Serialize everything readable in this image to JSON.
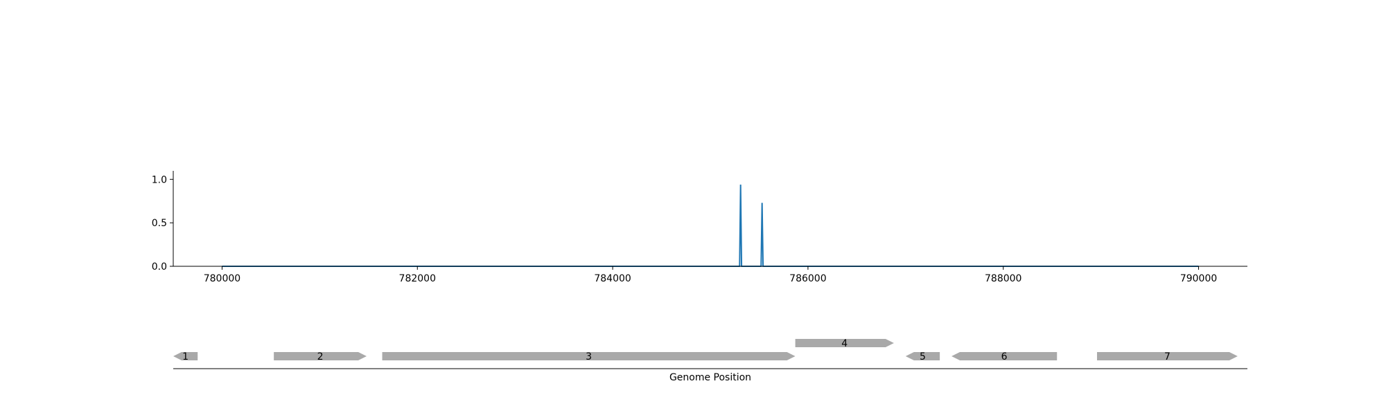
{
  "chart_data": [
    {
      "type": "line",
      "title": "",
      "xlabel": "",
      "ylabel": "",
      "xlim": [
        779500,
        790500
      ],
      "ylim": [
        0,
        1.05
      ],
      "xticks": [
        780000,
        782000,
        784000,
        786000,
        788000,
        790000
      ],
      "xtick_labels": [
        "780000",
        "782000",
        "784000",
        "786000",
        "788000",
        "790000"
      ],
      "yticks": [
        0,
        0.5,
        1
      ],
      "ytick_labels": [
        "0.0",
        "0.5",
        "1.0"
      ],
      "grid": false,
      "legend": "none",
      "series": [
        {
          "color": "#1f77b4",
          "x": [
            780000,
            785300,
            785310,
            785320,
            785520,
            785530,
            785540,
            790000
          ],
          "y": [
            0,
            0,
            0.94,
            0,
            0,
            0.73,
            0,
            0
          ]
        }
      ]
    },
    {
      "type": "gene-track",
      "xlabel": "Genome Position",
      "xlim": [
        779500,
        790500
      ],
      "feature_color": "#a9a9a9",
      "features": [
        {
          "label": "1",
          "start": 779500,
          "end": 779750,
          "strand": "-",
          "row": 0
        },
        {
          "label": "2",
          "start": 780530,
          "end": 781480,
          "strand": "+",
          "row": 0
        },
        {
          "label": "3",
          "start": 781640,
          "end": 785870,
          "strand": "+",
          "row": 0
        },
        {
          "label": "4",
          "start": 785870,
          "end": 786880,
          "strand": "+",
          "row": 1
        },
        {
          "label": "5",
          "start": 787000,
          "end": 787350,
          "strand": "-",
          "row": 0
        },
        {
          "label": "6",
          "start": 787470,
          "end": 788550,
          "strand": "-",
          "row": 0
        },
        {
          "label": "7",
          "start": 788960,
          "end": 790400,
          "strand": "+",
          "row": 0
        }
      ]
    }
  ]
}
